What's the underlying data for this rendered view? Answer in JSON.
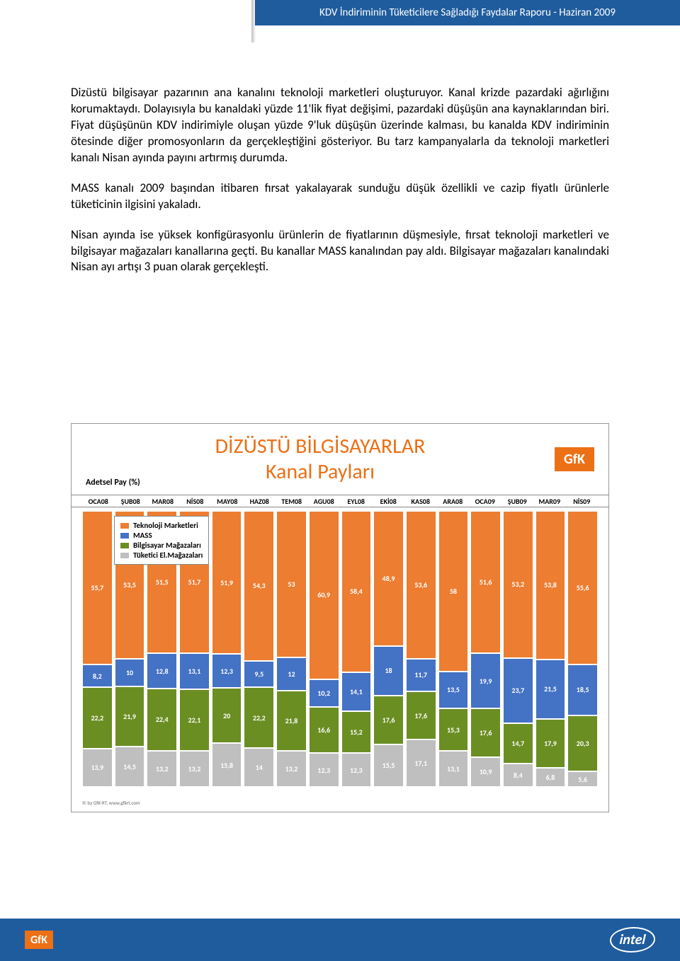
{
  "header": {
    "title": "KDV İndiriminin Tüketicilere Sağladığı Faydalar Raporu  - Haziran 2009"
  },
  "paragraphs": [
    "Dizüstü bilgisayar pazarının ana kanalını teknoloji marketleri oluşturuyor. Kanal krizde pazardaki ağırlığını korumaktaydı. Dolayısıyla bu kanaldaki yüzde 11'lik fiyat değişimi, pazardaki düşüşün ana kaynaklarından biri. Fiyat düşüşünün KDV indirimiyle oluşan yüzde 9'luk düşüşün üzerinde kalması, bu kanalda KDV indiriminin ötesinde diğer promosyonların da gerçekleştiğini gösteriyor. Bu tarz kampanyalarla da teknoloji marketleri kanalı Nisan ayında payını artırmış durumda.",
    "MASS kanalı 2009 başından itibaren fırsat yakalayarak sunduğu düşük özellikli ve cazip fiyatlı ürünlerle tüketicinin ilgisini yakaladı.",
    "Nisan ayında ise yüksek konfigürasyonlu ürünlerin de fiyatlarının düşmesiyle, fırsat teknoloji marketleri ve bilgisayar mağazaları kanallarına geçti. Bu kanallar MASS kanalından pay aldı. Bilgisayar mağazaları kanalındaki Nisan ayı artışı 3 puan olarak gerçekleşti."
  ],
  "chart": {
    "pay_label": "Adetsel Pay (%)",
    "title_line1": "DİZÜSTÜ BİLGİSAYARLAR",
    "title_line2": "Kanal Payları",
    "gfk_label": "GfK",
    "months": [
      "OCA08",
      "ŞUB08",
      "MAR08",
      "NİS08",
      "MAY08",
      "HAZ08",
      "TEM08",
      "AGU08",
      "EYL08",
      "EKİ08",
      "KAS08",
      "ARA08",
      "OCA09",
      "ŞUB09",
      "MAR09",
      "NİS09"
    ],
    "legend": [
      {
        "label": "Teknoloji Marketleri",
        "color": "#ed7d31"
      },
      {
        "label": "MASS",
        "color": "#4472c4"
      },
      {
        "label": "Bilgisayar Mağazaları",
        "color": "#6b8e23"
      },
      {
        "label": "Tüketici El.Mağazaları",
        "color": "#bfbfbf"
      }
    ],
    "colors": {
      "tek": "#ed7d31",
      "mass": "#4472c4",
      "bilg": "#6b8e23",
      "tuk": "#bfbfbf"
    },
    "label_fontcolor": "#ffffff",
    "data": [
      {
        "tek": "55,7",
        "mass": "8,2",
        "bilg": "22,2",
        "tuk": "13,9"
      },
      {
        "tek": "53,5",
        "mass": "10",
        "bilg": "21,9",
        "tuk": "14,5"
      },
      {
        "tek": "51,5",
        "mass": "12,8",
        "bilg": "22,4",
        "tuk": "13,2"
      },
      {
        "tek": "51,7",
        "mass": "13,1",
        "bilg": "22,1",
        "tuk": "13,2"
      },
      {
        "tek": "51,9",
        "mass": "12,3",
        "bilg": "20",
        "tuk": "15,8"
      },
      {
        "tek": "54,3",
        "mass": "9,5",
        "bilg": "22,2",
        "tuk": "14"
      },
      {
        "tek": "53",
        "mass": "12",
        "bilg": "21,8",
        "tuk": "13,2"
      },
      {
        "tek": "60,9",
        "mass": "10,2",
        "bilg": "16,6",
        "tuk": "12,3"
      },
      {
        "tek": "58,4",
        "mass": "14,1",
        "bilg": "15,2",
        "tuk": "12,3"
      },
      {
        "tek": "48,9",
        "mass": "18",
        "bilg": "17,6",
        "tuk": "15,5"
      },
      {
        "tek": "53,6",
        "mass": "11,7",
        "bilg": "17,6",
        "tuk": "17,1"
      },
      {
        "tek": "58",
        "mass": "13,5",
        "bilg": "15,3",
        "tuk": "13,1"
      },
      {
        "tek": "51,6",
        "mass": "19,9",
        "bilg": "17,6",
        "tuk": "10,9"
      },
      {
        "tek": "53,2",
        "mass": "23,7",
        "bilg": "14,7",
        "tuk": "8,4"
      },
      {
        "tek": "53,8",
        "mass": "21,5",
        "bilg": "17,9",
        "tuk": "6,8"
      },
      {
        "tek": "55,6",
        "mass": "18,5",
        "bilg": "20,3",
        "tuk": "5,6"
      }
    ],
    "copyright": "© by GfK-RT, www.gfkrt.com"
  },
  "footer": {
    "gfk": "GfK",
    "intel": "intel"
  }
}
